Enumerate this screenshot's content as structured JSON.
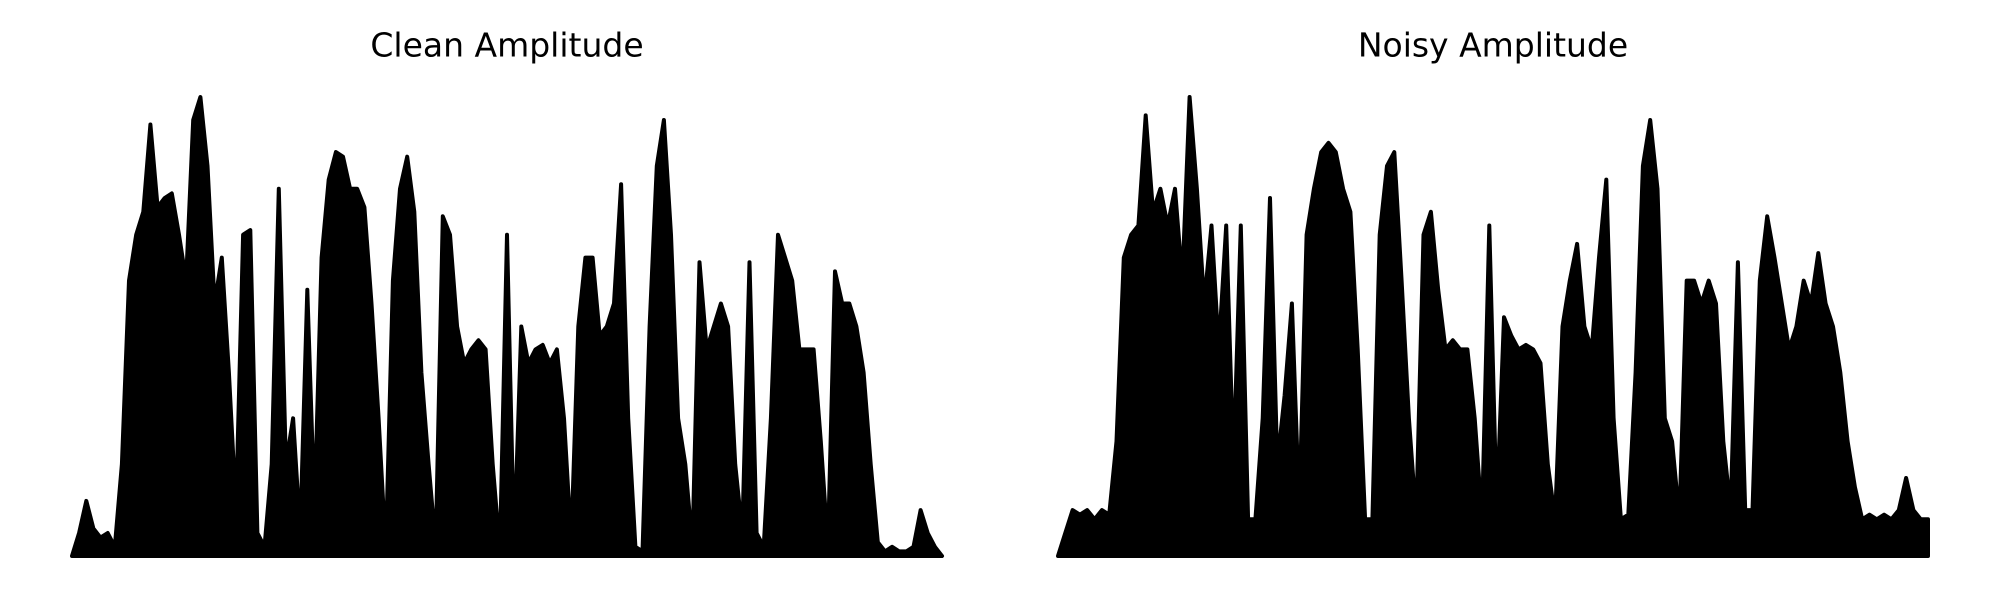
{
  "chart_data": [
    {
      "type": "area",
      "title": "Clean Amplitude",
      "color": "#000000",
      "ylim": [
        0,
        1
      ],
      "values": [
        0.0,
        0.05,
        0.12,
        0.06,
        0.04,
        0.05,
        0.02,
        0.2,
        0.6,
        0.7,
        0.75,
        0.94,
        0.76,
        0.78,
        0.79,
        0.7,
        0.6,
        0.95,
        1.0,
        0.85,
        0.55,
        0.65,
        0.4,
        0.1,
        0.7,
        0.71,
        0.05,
        0.02,
        0.2,
        0.8,
        0.2,
        0.3,
        0.05,
        0.58,
        0.1,
        0.65,
        0.82,
        0.88,
        0.87,
        0.8,
        0.8,
        0.76,
        0.55,
        0.3,
        0.01,
        0.6,
        0.8,
        0.87,
        0.75,
        0.4,
        0.2,
        0.02,
        0.74,
        0.7,
        0.5,
        0.42,
        0.45,
        0.47,
        0.45,
        0.2,
        0.01,
        0.7,
        0.02,
        0.5,
        0.42,
        0.45,
        0.46,
        0.42,
        0.45,
        0.3,
        0.03,
        0.5,
        0.65,
        0.65,
        0.48,
        0.5,
        0.55,
        0.81,
        0.3,
        0.02,
        0.01,
        0.5,
        0.85,
        0.95,
        0.7,
        0.3,
        0.2,
        0.02,
        0.64,
        0.45,
        0.5,
        0.55,
        0.5,
        0.2,
        0.05,
        0.64,
        0.05,
        0.02,
        0.3,
        0.7,
        0.65,
        0.6,
        0.45,
        0.45,
        0.45,
        0.25,
        0.02,
        0.62,
        0.55,
        0.55,
        0.5,
        0.4,
        0.2,
        0.03,
        0.01,
        0.02,
        0.01,
        0.01,
        0.02,
        0.1,
        0.05,
        0.02,
        0.0
      ]
    },
    {
      "type": "area",
      "title": "Noisy Amplitude",
      "color": "#000000",
      "ylim": [
        0,
        1
      ],
      "values": [
        0.0,
        0.05,
        0.1,
        0.09,
        0.1,
        0.08,
        0.1,
        0.09,
        0.25,
        0.65,
        0.7,
        0.72,
        0.96,
        0.75,
        0.8,
        0.72,
        0.8,
        0.6,
        1.0,
        0.8,
        0.55,
        0.72,
        0.45,
        0.72,
        0.2,
        0.72,
        0.08,
        0.08,
        0.3,
        0.78,
        0.2,
        0.35,
        0.55,
        0.1,
        0.7,
        0.8,
        0.88,
        0.9,
        0.88,
        0.8,
        0.75,
        0.45,
        0.08,
        0.08,
        0.7,
        0.85,
        0.88,
        0.6,
        0.3,
        0.08,
        0.7,
        0.75,
        0.58,
        0.45,
        0.47,
        0.45,
        0.45,
        0.3,
        0.08,
        0.72,
        0.1,
        0.52,
        0.48,
        0.45,
        0.46,
        0.45,
        0.42,
        0.2,
        0.08,
        0.5,
        0.6,
        0.68,
        0.5,
        0.45,
        0.65,
        0.82,
        0.3,
        0.08,
        0.09,
        0.4,
        0.85,
        0.95,
        0.8,
        0.3,
        0.25,
        0.08,
        0.6,
        0.6,
        0.55,
        0.6,
        0.55,
        0.25,
        0.1,
        0.64,
        0.1,
        0.1,
        0.6,
        0.74,
        0.65,
        0.55,
        0.45,
        0.5,
        0.6,
        0.55,
        0.66,
        0.55,
        0.5,
        0.4,
        0.25,
        0.15,
        0.08,
        0.09,
        0.08,
        0.09,
        0.08,
        0.1,
        0.17,
        0.1,
        0.08,
        0.08
      ]
    }
  ]
}
